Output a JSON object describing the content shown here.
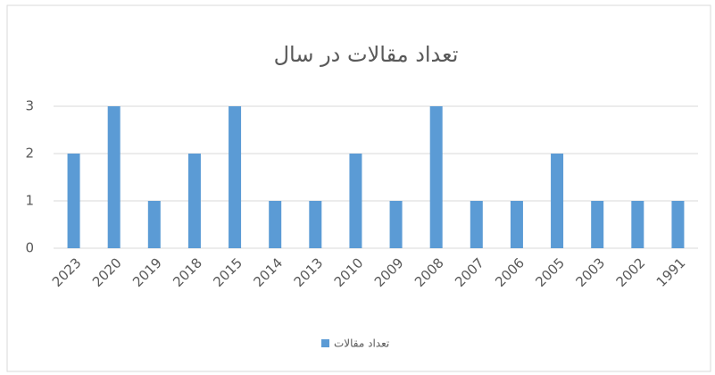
{
  "chart_data": {
    "type": "bar",
    "title": "تعداد مقالات در سال",
    "categories": [
      "2023",
      "2020",
      "2019",
      "2018",
      "2015",
      "2014",
      "2013",
      "2010",
      "2009",
      "2008",
      "2007",
      "2006",
      "2005",
      "2003",
      "2002",
      "1991"
    ],
    "series": [
      {
        "name": "تعداد مقالات",
        "color": "#5b9bd5",
        "values": [
          2,
          3,
          1,
          2,
          3,
          1,
          1,
          2,
          1,
          3,
          1,
          1,
          2,
          1,
          1,
          1
        ]
      }
    ],
    "ylim": [
      0,
      3
    ],
    "yticks": [
      0,
      1,
      2,
      3
    ],
    "grid": true,
    "legend": "bottom"
  }
}
